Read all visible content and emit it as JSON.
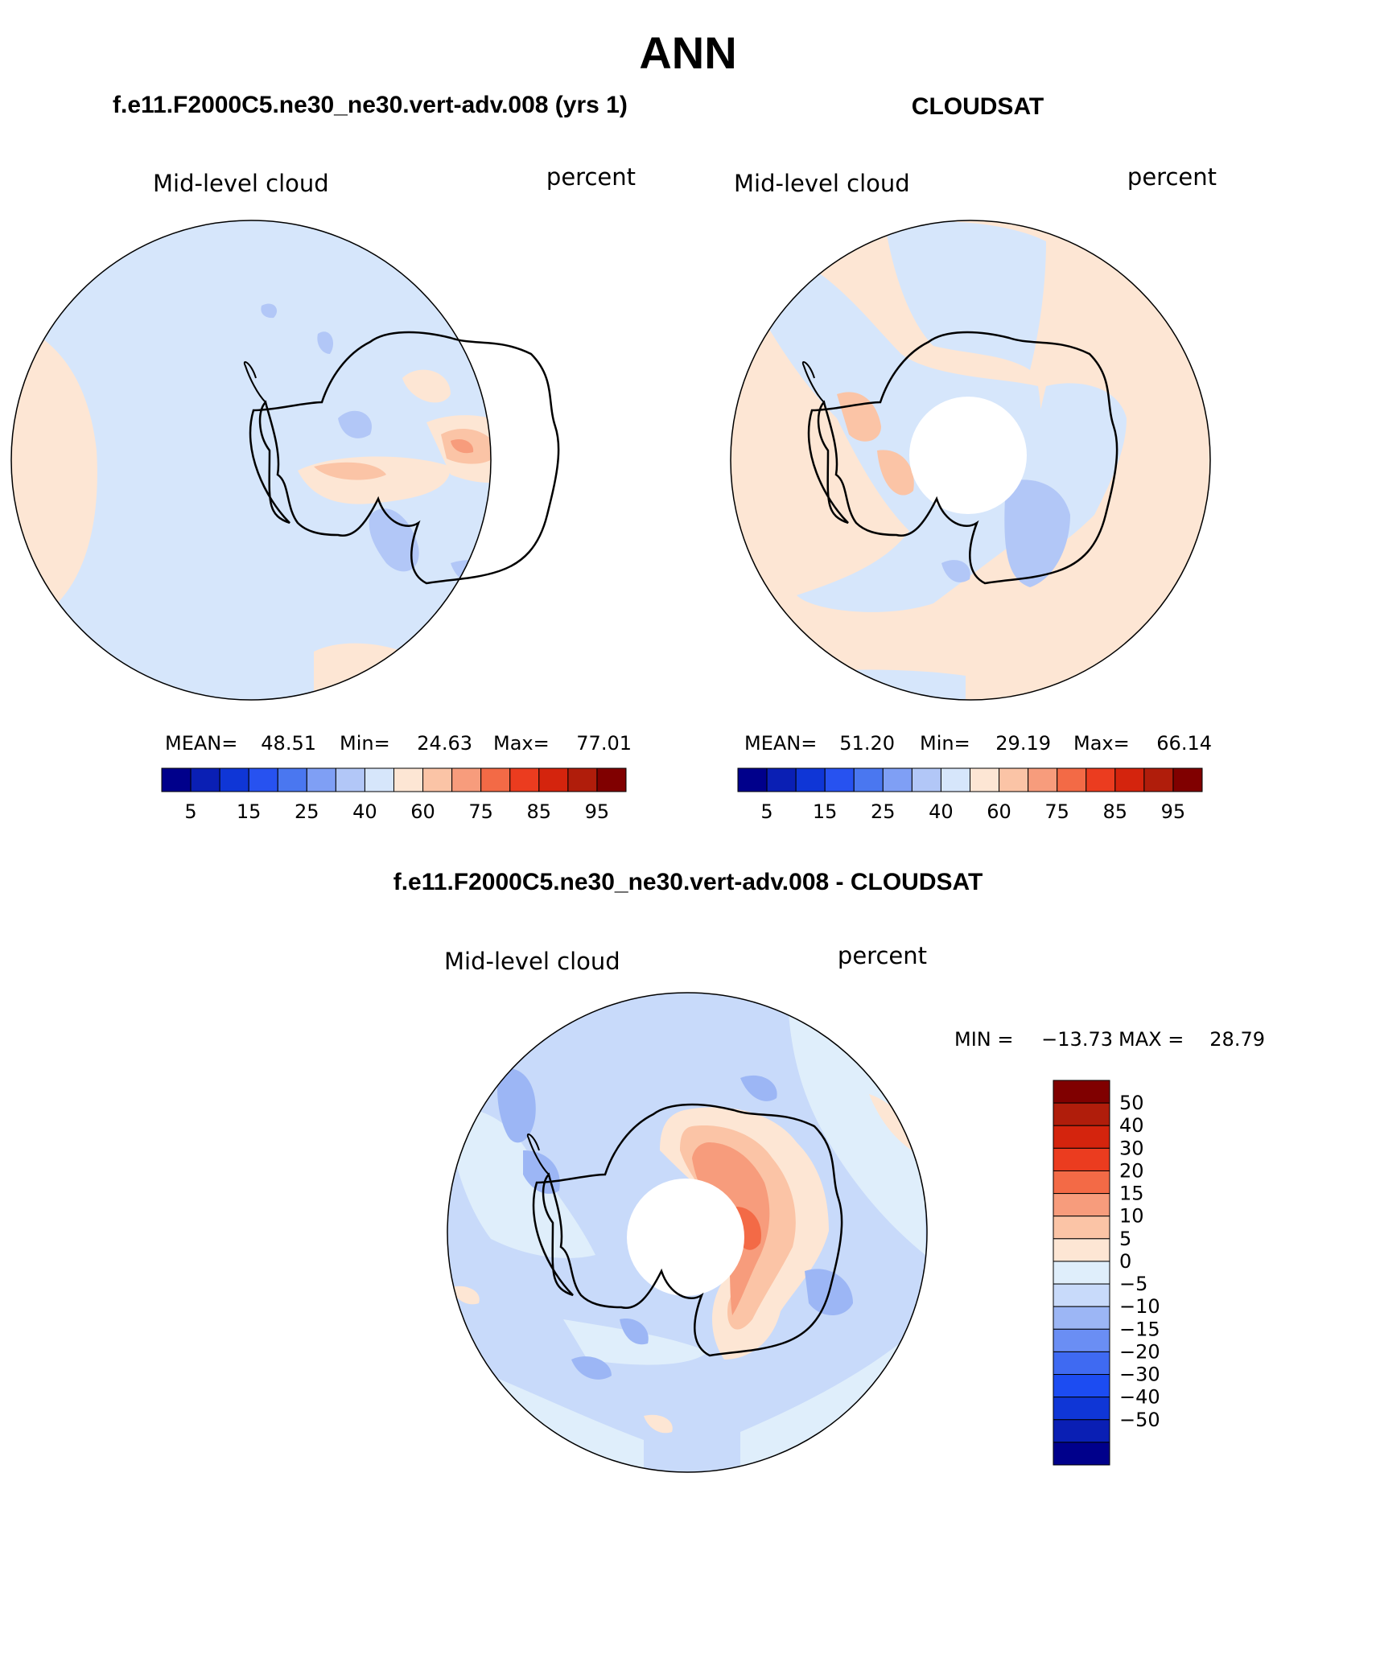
{
  "title": "ANN",
  "colors": {
    "abs_levels": [
      "#00008b",
      "#0a1fb4",
      "#0f36d6",
      "#2752f0",
      "#4a77f0",
      "#7f9ff5",
      "#b2c7f7",
      "#d6e6fb",
      "#fde6d4",
      "#fbc4a6",
      "#f79c7c",
      "#f36a46",
      "#eb3c1f",
      "#d4240d",
      "#b01d0b",
      "#800000"
    ],
    "diff_levels": [
      "#00008b",
      "#0a1fb4",
      "#0f36d6",
      "#1c4cf2",
      "#3f6af2",
      "#6a8ef4",
      "#9cb6f5",
      "#c8dafa",
      "#dfeefb",
      "#fde6d4",
      "#fbc4a6",
      "#f79c7c",
      "#f36a46",
      "#eb3c1f",
      "#d4240d",
      "#b01d0b",
      "#800000"
    ],
    "coast": "#000000"
  },
  "chart_data": [
    {
      "type": "heatmap",
      "title": "f.e11.F2000C5.ne30_ne30.vert-adv.008 (yrs 1)",
      "variable": "Mid-level cloud",
      "units": "percent",
      "stats": {
        "mean_label": "MEAN=",
        "mean": "48.51",
        "min_label": "Min=",
        "min": "24.63",
        "max_label": "Max=",
        "max": "77.01"
      },
      "colorbar_ticks": [
        "5",
        "15",
        "25",
        "40",
        "60",
        "75",
        "85",
        "95"
      ],
      "projection": "south polar stereographic"
    },
    {
      "type": "heatmap",
      "title": "CLOUDSAT",
      "variable": "Mid-level cloud",
      "units": "percent",
      "stats": {
        "mean_label": "MEAN=",
        "mean": "51.20",
        "min_label": "Min=",
        "min": "29.19",
        "max_label": "Max=",
        "max": "66.14"
      },
      "colorbar_ticks": [
        "5",
        "15",
        "25",
        "40",
        "60",
        "75",
        "85",
        "95"
      ],
      "projection": "south polar stereographic"
    },
    {
      "type": "heatmap",
      "title": "f.e11.F2000C5.ne30_ne30.vert-adv.008 - CLOUDSAT",
      "variable": "Mid-level cloud",
      "units": "percent",
      "stats": {
        "min_label": "MIN =",
        "min": "−13.73",
        "max_label": "MAX =",
        "max": "28.79"
      },
      "colorbar_ticks": [
        "50",
        "40",
        "30",
        "20",
        "15",
        "10",
        "5",
        "0",
        "−5",
        "−10",
        "−15",
        "−20",
        "−30",
        "−40",
        "−50"
      ],
      "projection": "south polar stereographic"
    }
  ]
}
